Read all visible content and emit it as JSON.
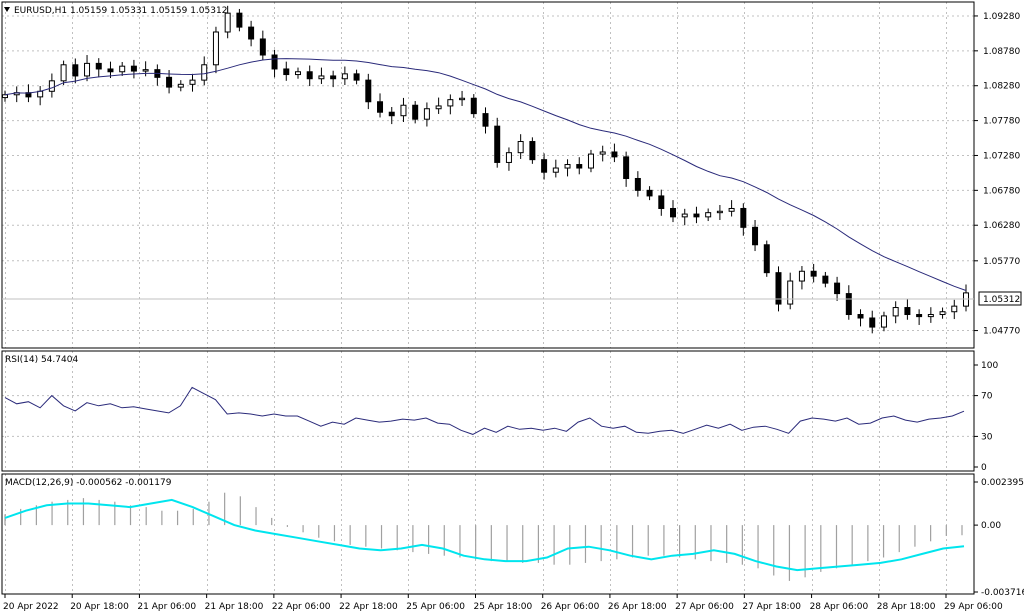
{
  "symbol_header": "EURUSD,H1  1.05159 1.05331 1.05159 1.05312",
  "price_panel": {
    "yticks": [
      "1.09280",
      "1.08780",
      "1.08280",
      "1.07780",
      "1.07280",
      "1.06780",
      "1.06280",
      "1.05770",
      "1.04770"
    ],
    "current_price": "1.05312",
    "ylim": [
      1.0452,
      1.0948
    ]
  },
  "rsi_panel": {
    "header": "RSI(14) 54.7404",
    "yticks": [
      "100",
      "70",
      "30",
      "0"
    ]
  },
  "macd_panel": {
    "header": "MACD(12,26,9) -0.000562 -0.001179",
    "yticks": [
      "0.002395",
      "0.00",
      "-0.003716"
    ]
  },
  "x_axis_labels": [
    "20 Apr 2022",
    "20 Apr 18:00",
    "21 Apr 06:00",
    "21 Apr 18:00",
    "22 Apr 06:00",
    "22 Apr 18:00",
    "25 Apr 06:00",
    "25 Apr 18:00",
    "26 Apr 06:00",
    "26 Apr 18:00",
    "27 Apr 06:00",
    "27 Apr 18:00",
    "28 Apr 06:00",
    "28 Apr 18:00",
    "29 Apr 06:00"
  ],
  "colors": {
    "candle": "#000000",
    "moving_average": "#2a2a7a",
    "rsi_line": "#2a2a7a",
    "macd_signal": "#00e5ee",
    "macd_histogram": "#a0a0a0",
    "grid": "#c0c0c0"
  },
  "chart_data": [
    {
      "type": "candlestick",
      "title": "EURUSD,H1",
      "ylim": [
        1.0452,
        1.0948
      ],
      "grid": true,
      "close_series_key": [
        1.0815,
        1.0818,
        1.0812,
        1.082,
        1.0835,
        1.0858,
        1.0842,
        1.086,
        1.0852,
        1.0848,
        1.0856,
        1.0849,
        1.0851,
        1.084,
        1.0826,
        1.083,
        1.0836,
        1.0858,
        1.0905,
        1.0932,
        1.0912,
        1.0895,
        1.0872,
        1.0852,
        1.0844,
        1.0848,
        1.0838,
        1.0842,
        1.0838,
        1.0845,
        1.0836,
        1.0805,
        1.079,
        1.0785,
        1.08,
        1.078,
        1.0795,
        1.0799,
        1.0808,
        1.081,
        1.0788,
        1.077,
        1.0718,
        1.0732,
        1.0748,
        1.0722,
        1.0704,
        1.071,
        1.0715,
        1.071,
        1.073,
        1.0733,
        1.0726,
        1.0695,
        1.0678,
        1.067,
        1.0652,
        1.064,
        1.0644,
        1.064,
        1.0646,
        1.0648,
        1.0652,
        1.0625,
        1.06,
        1.056,
        1.0515,
        1.0548,
        1.0562,
        1.0555,
        1.0545,
        1.053,
        1.05,
        1.0495,
        1.0482,
        1.0498,
        1.051,
        1.05,
        1.0497,
        1.05,
        1.0504,
        1.0512,
        1.0531
      ]
    },
    {
      "type": "line",
      "title": "RSI(14)",
      "ylim": [
        0,
        100
      ],
      "values": [
        68,
        62,
        64,
        58,
        70,
        60,
        55,
        63,
        60,
        62,
        58,
        59,
        57,
        55,
        53,
        60,
        78,
        72,
        66,
        52,
        53,
        52,
        50,
        52,
        50,
        50,
        45,
        40,
        44,
        42,
        48,
        46,
        44,
        45,
        47,
        46,
        48,
        43,
        42,
        36,
        32,
        38,
        34,
        40,
        37,
        38,
        36,
        38,
        35,
        44,
        48,
        40,
        38,
        40,
        34,
        33,
        35,
        36,
        33,
        37,
        41,
        38,
        42,
        36,
        39,
        40,
        37,
        33,
        45,
        48,
        47,
        45,
        48,
        42,
        43,
        48,
        50,
        46,
        44,
        47,
        48,
        50,
        54.74
      ]
    },
    {
      "type": "bar+line",
      "title": "MACD(12,26,9)",
      "ylim": [
        -0.003716,
        0.002395
      ],
      "histogram": [
        0.0006,
        0.0009,
        0.0011,
        0.0013,
        0.0014,
        0.0015,
        0.0014,
        0.0013,
        0.0011,
        0.001,
        0.0008,
        0.0008,
        0.0009,
        0.0013,
        0.0018,
        0.0016,
        0.001,
        0.0004,
        -0.0001,
        -0.0004,
        -0.0007,
        -0.0009,
        -0.0011,
        -0.0012,
        -0.0013,
        -0.0014,
        -0.0015,
        -0.0016,
        -0.0017,
        -0.0018,
        -0.0019,
        -0.002,
        -0.002,
        -0.0021,
        -0.0021,
        -0.0022,
        -0.0022,
        -0.0021,
        -0.002,
        -0.0019,
        -0.0018,
        -0.0017,
        -0.0017,
        -0.0018,
        -0.0019,
        -0.002,
        -0.0021,
        -0.0022,
        -0.0024,
        -0.0028,
        -0.0031,
        -0.0029,
        -0.0026,
        -0.0024,
        -0.0022,
        -0.002,
        -0.0018,
        -0.0015,
        -0.0012,
        -0.0009,
        -0.0006,
        -0.000562
      ],
      "signal": [
        0.0004,
        0.0008,
        0.0011,
        0.0012,
        0.0012,
        0.0011,
        0.001,
        0.0012,
        0.0014,
        0.001,
        0.0005,
        0.0,
        -0.0003,
        -0.0005,
        -0.0007,
        -0.0009,
        -0.0011,
        -0.0013,
        -0.0014,
        -0.0013,
        -0.0011,
        -0.0013,
        -0.0017,
        -0.0019,
        -0.002,
        -0.002,
        -0.0018,
        -0.0013,
        -0.0012,
        -0.0014,
        -0.0017,
        -0.0019,
        -0.0017,
        -0.0016,
        -0.0014,
        -0.0016,
        -0.002,
        -0.0023,
        -0.0025,
        -0.0024,
        -0.0023,
        -0.0022,
        -0.0021,
        -0.0019,
        -0.0016,
        -0.0013,
        -0.001179
      ]
    }
  ]
}
